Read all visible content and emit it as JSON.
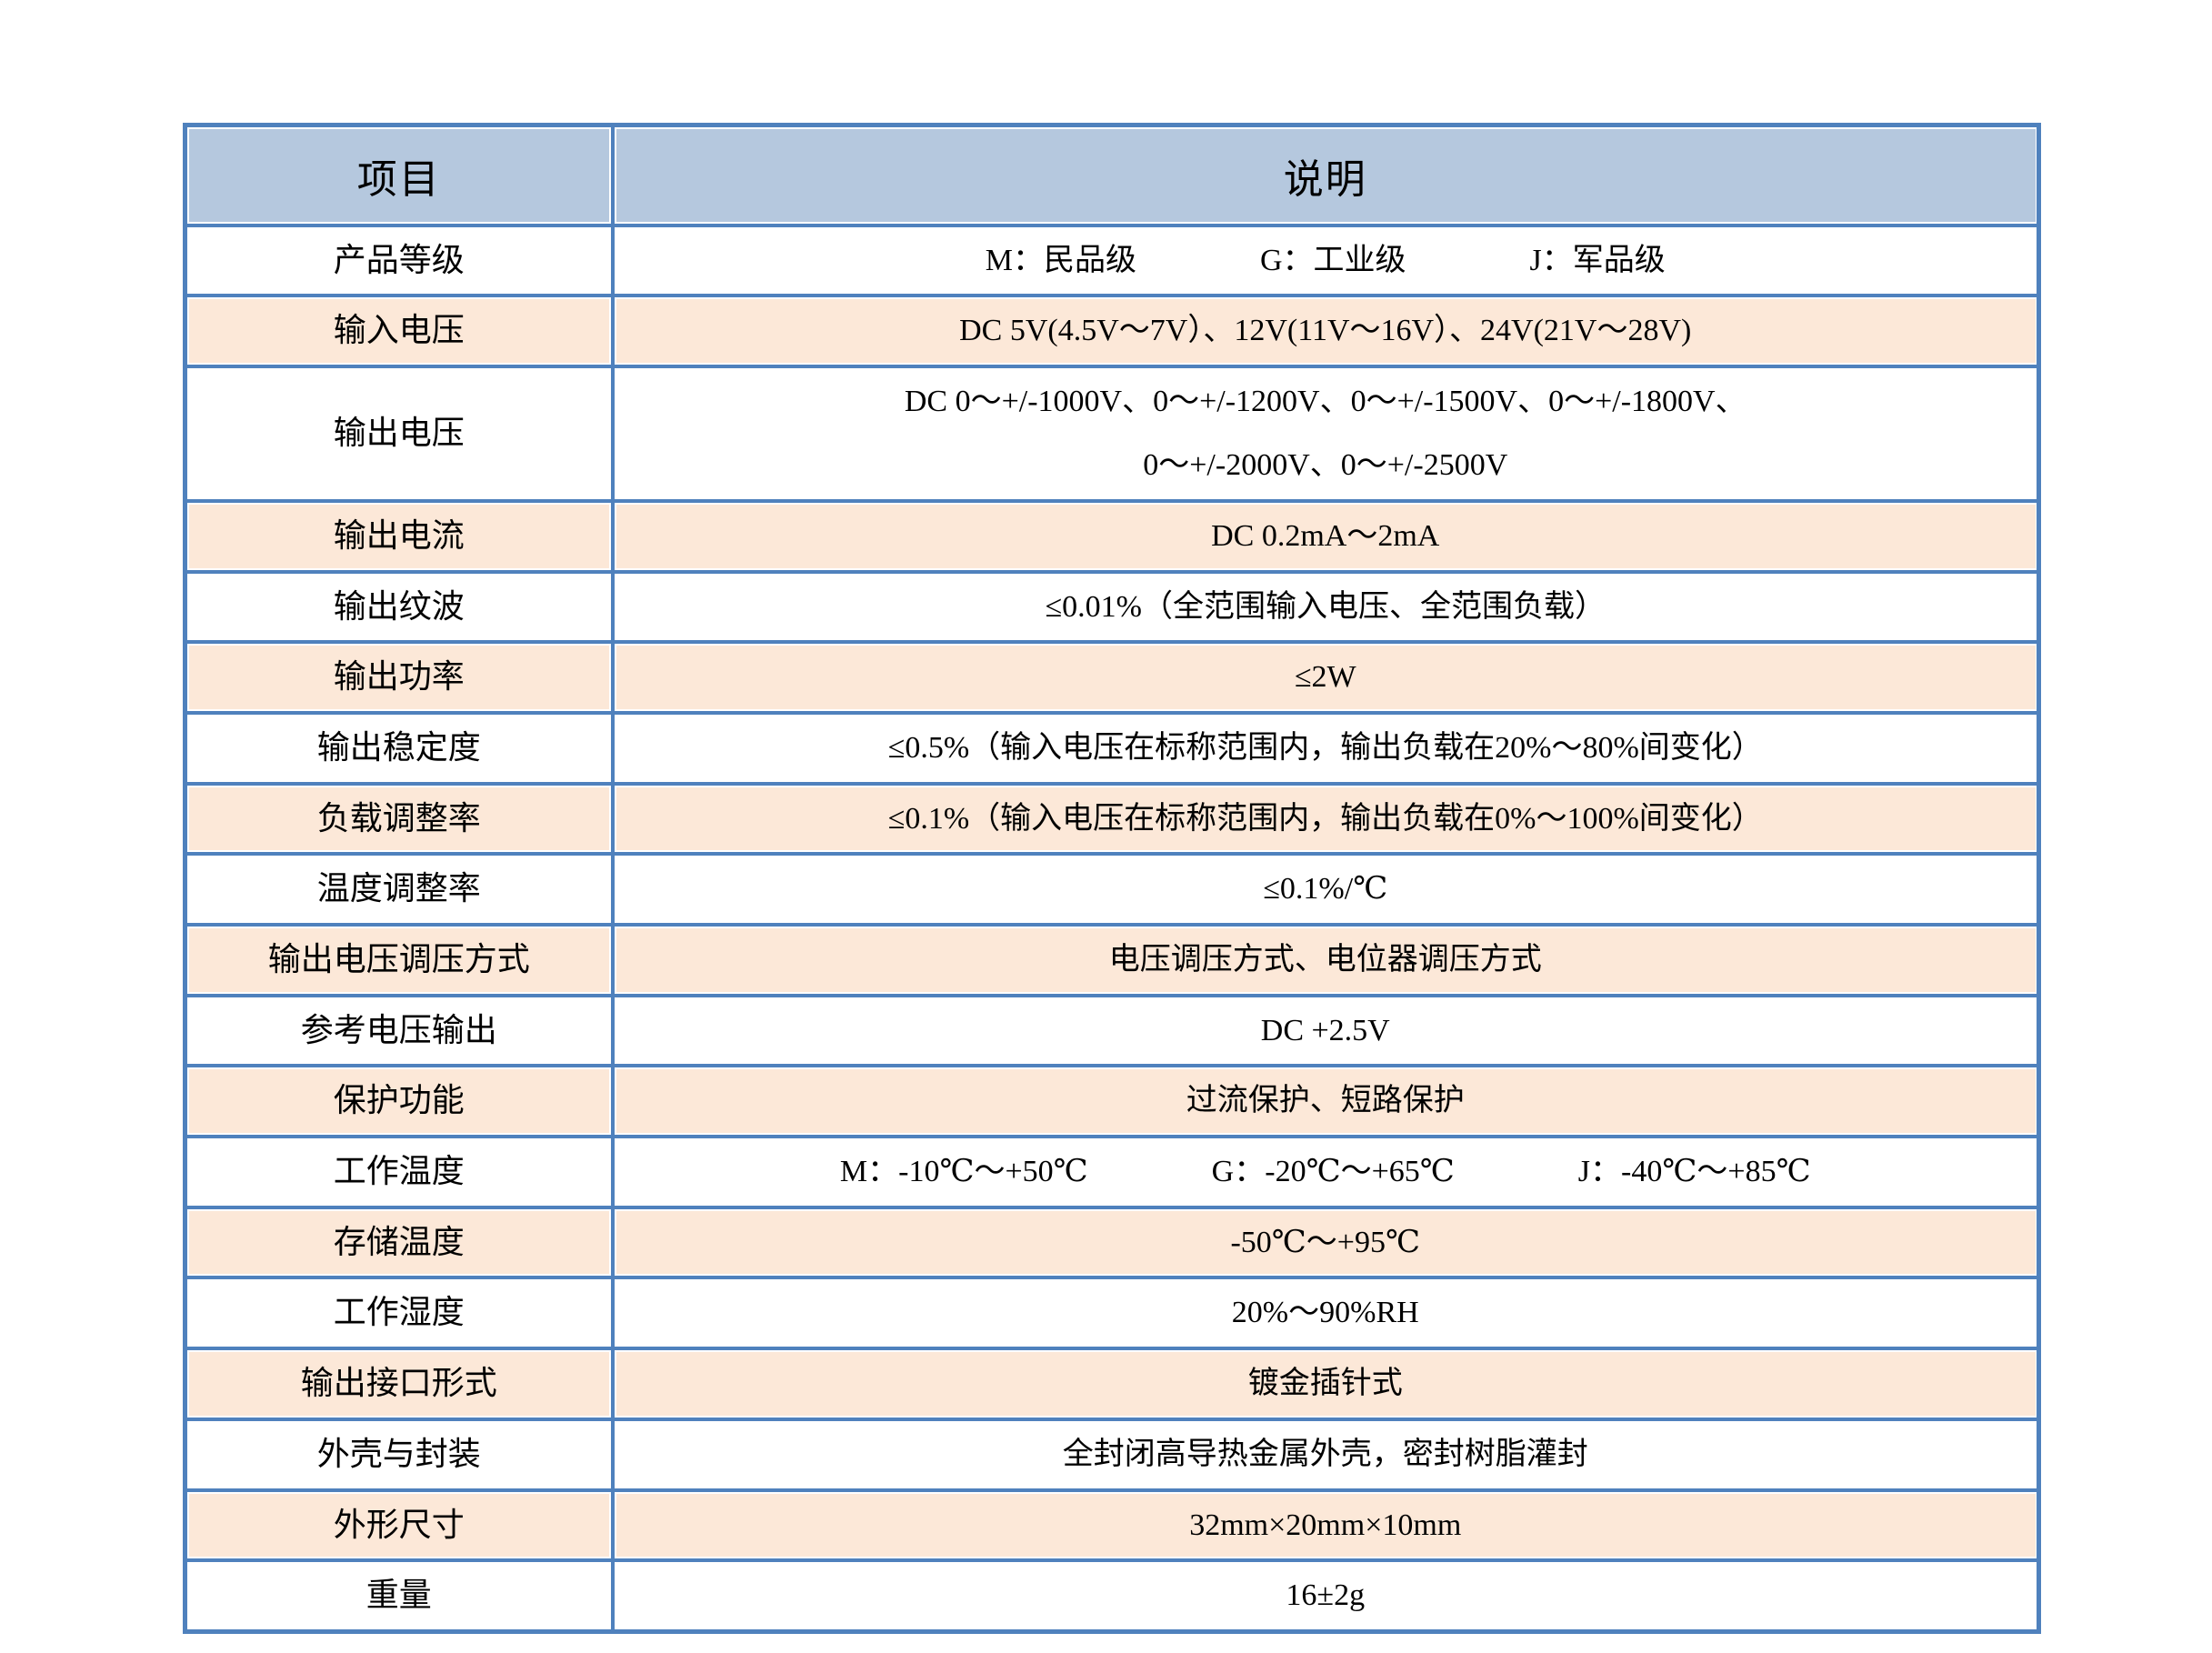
{
  "header": {
    "item": "项目",
    "desc": "说明"
  },
  "rows": [
    {
      "label": "产品等级",
      "value": "M：民品级　　　　G：工业级　　　　J：军品级"
    },
    {
      "label": "输入电压",
      "value": "DC 5V(4.5V～7V）、12V(11V～16V）、24V(21V～28V)"
    },
    {
      "label": "输出电压",
      "value": "DC 0～+/-1000V、0～+/-1200V、0～+/-1500V、0～+/-1800V、\n0～+/-2000V、0～+/-2500V"
    },
    {
      "label": "输出电流",
      "value": "DC 0.2mA～2mA"
    },
    {
      "label": "输出纹波",
      "value": "≤0.01%（全范围输入电压、全范围负载）"
    },
    {
      "label": "输出功率",
      "value": "≤2W"
    },
    {
      "label": "输出稳定度",
      "value": "≤0.5%（输入电压在标称范围内，输出负载在20%～80%间变化）"
    },
    {
      "label": "负载调整率",
      "value": "≤0.1%（输入电压在标称范围内，输出负载在0%～100%间变化）"
    },
    {
      "label": "温度调整率",
      "value": "≤0.1%/℃"
    },
    {
      "label": "输出电压调压方式",
      "value": "电压调压方式、电位器调压方式"
    },
    {
      "label": "参考电压输出",
      "value": "DC +2.5V"
    },
    {
      "label": "保护功能",
      "value": "过流保护、短路保护"
    },
    {
      "label": "工作温度",
      "value": "M：-10℃～+50℃　　　　G：-20℃～+65℃　　　　J：-40℃～+85℃"
    },
    {
      "label": "存储温度",
      "value": "-50℃～+95℃"
    },
    {
      "label": "工作湿度",
      "value": "20%～90%RH"
    },
    {
      "label": "输出接口形式",
      "value": "镀金插针式"
    },
    {
      "label": "外壳与封装",
      "value": "全封闭高导热金属外壳，密封树脂灌封"
    },
    {
      "label": "外形尺寸",
      "value": "32mm×20mm×10mm"
    },
    {
      "label": "重量",
      "value": "16±2g"
    }
  ],
  "colors": {
    "border": "#4f81bd",
    "header_bg": "#b5c8de",
    "stripe_bg": "#fce8d8",
    "text": "#000000",
    "page_bg": "#ffffff"
  }
}
